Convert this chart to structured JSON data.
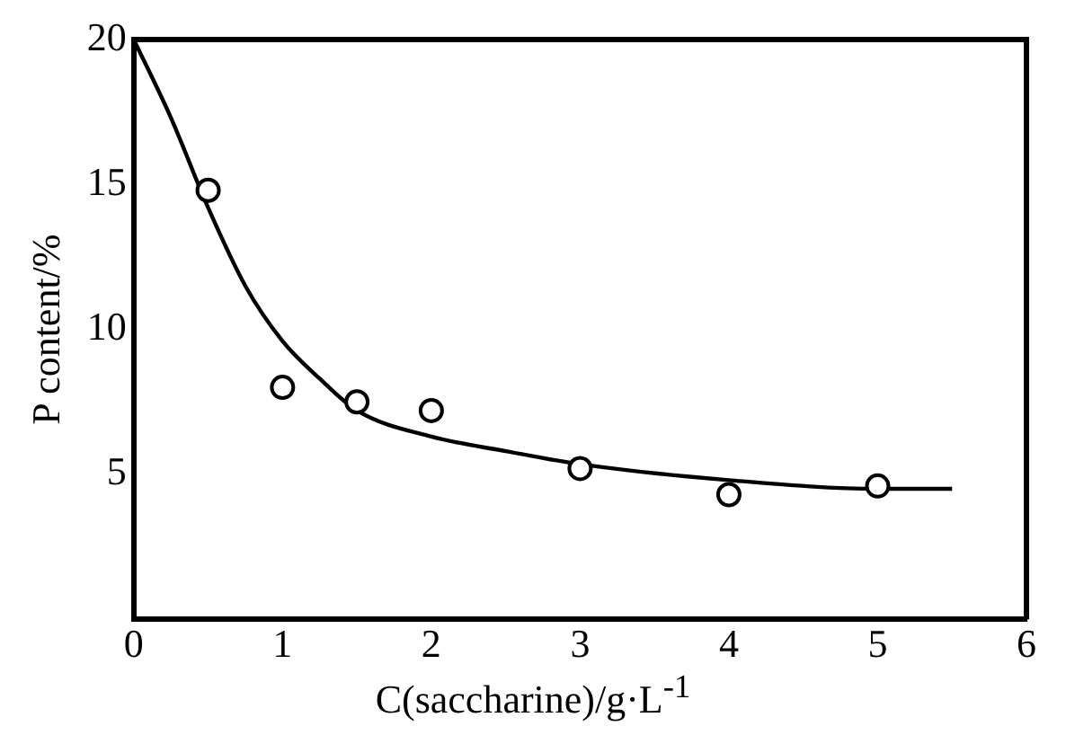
{
  "chart_data": {
    "type": "scatter",
    "xlabel": "C(saccharine)/g·L$^{-1}$",
    "ylabel": "P content/%",
    "xlim": [
      0,
      6
    ],
    "xticks": [
      0,
      1,
      2,
      3,
      4,
      5,
      6
    ],
    "ylim": [
      0,
      20
    ],
    "yticks": [
      5,
      10,
      15,
      20
    ],
    "grid": false,
    "legend": false,
    "series": [
      {
        "color": "#000000",
        "marker": "circle",
        "x": [
          0.5,
          1,
          1.5,
          2,
          3,
          4,
          5
        ],
        "values": [
          14.8,
          8.0,
          7.5,
          7.2,
          5.2,
          4.3,
          4.6
        ]
      },
      {
        "type": "line",
        "color": "#000000",
        "marker": "none",
        "x": [
          0,
          0.25,
          0.5,
          0.75,
          1,
          1.25,
          1.5,
          2,
          2.5,
          3,
          4,
          5,
          5.5
        ],
        "values": [
          20,
          17.3,
          14.2,
          11.5,
          9.6,
          8.3,
          7.2,
          6.3,
          5.8,
          5.35,
          4.8,
          4.5,
          4.5
        ]
      }
    ]
  }
}
